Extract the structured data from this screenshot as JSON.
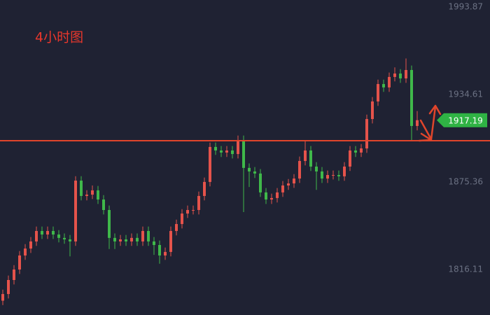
{
  "chart_data": {
    "type": "candlestick",
    "title": "4小时图",
    "ylim": [
      1785.3,
      1998.6
    ],
    "yticks": [
      1816.11,
      1875.36,
      1934.61,
      1993.87
    ],
    "up_color": "#e5534b",
    "down_color": "#3fb84a",
    "hline": 1903.3,
    "hline_color": "#e0452b",
    "last_price": 1917.19,
    "last_price_color": "#2fb344",
    "open": [
      1795.0,
      1799.5,
      1809.0,
      1816.1,
      1825.6,
      1830.3,
      1835.1,
      1842.2,
      1839.8,
      1842.2,
      1839.8,
      1837.5,
      1836.5,
      1835.1,
      1876.3,
      1865.9,
      1866.8,
      1869.7,
      1863.5,
      1856.4,
      1837.5,
      1835.1,
      1836.5,
      1835.1,
      1837.5,
      1835.1,
      1842.2,
      1835.1,
      1832.7,
      1825.6,
      1828.0,
      1842.2,
      1846.9,
      1854.0,
      1856.4,
      1856.4,
      1865.9,
      1875.4,
      1899.1,
      1896.7,
      1895.3,
      1896.7,
      1894.3,
      1903.8,
      1884.9,
      1882.5,
      1881.1,
      1868.3,
      1863.5,
      1864.5,
      1868.3,
      1873.0,
      1874.4,
      1877.7,
      1889.6,
      1896.7,
      1885.8,
      1882.5,
      1877.7,
      1880.1,
      1880.1,
      1879.2,
      1885.8,
      1896.7,
      1895.3,
      1898.1,
      1918.0,
      1929.9,
      1941.7,
      1939.4,
      1946.5,
      1948.8,
      1945.5,
      1951.2,
      1913.3
    ],
    "high": [
      1802.5,
      1812.0,
      1819.1,
      1828.6,
      1833.3,
      1838.1,
      1845.2,
      1845.2,
      1845.2,
      1845.2,
      1842.8,
      1840.5,
      1839.5,
      1879.3,
      1879.3,
      1869.8,
      1873.0,
      1872.7,
      1866.5,
      1859.4,
      1840.5,
      1839.5,
      1839.5,
      1840.5,
      1840.5,
      1845.2,
      1845.2,
      1838.1,
      1835.7,
      1831.0,
      1845.2,
      1849.9,
      1857.0,
      1859.4,
      1859.4,
      1868.9,
      1878.4,
      1902.1,
      1902.1,
      1899.7,
      1899.7,
      1899.7,
      1906.8,
      1906.8,
      1887.9,
      1885.5,
      1884.1,
      1871.3,
      1867.5,
      1871.3,
      1876.0,
      1877.4,
      1880.7,
      1892.6,
      1903.0,
      1899.7,
      1888.8,
      1885.5,
      1883.1,
      1883.1,
      1883.1,
      1888.8,
      1899.7,
      1899.7,
      1901.1,
      1921.0,
      1932.9,
      1944.7,
      1944.7,
      1949.5,
      1953.0,
      1951.8,
      1959.0,
      1954.2,
      1923.4
    ],
    "low": [
      1792.0,
      1796.5,
      1806.0,
      1813.1,
      1822.6,
      1827.3,
      1832.1,
      1836.8,
      1836.8,
      1836.8,
      1834.5,
      1833.5,
      1825.0,
      1832.1,
      1862.9,
      1862.9,
      1863.8,
      1860.5,
      1853.4,
      1830.0,
      1830.0,
      1832.1,
      1832.1,
      1832.1,
      1832.1,
      1832.1,
      1832.1,
      1826.0,
      1820.0,
      1822.6,
      1825.0,
      1839.2,
      1843.9,
      1851.0,
      1853.4,
      1853.4,
      1862.9,
      1872.4,
      1893.7,
      1892.3,
      1892.3,
      1891.3,
      1891.3,
      1855.0,
      1872.0,
      1878.1,
      1865.3,
      1860.5,
      1860.5,
      1861.5,
      1865.3,
      1870.0,
      1871.4,
      1874.7,
      1886.6,
      1882.8,
      1870.0,
      1874.7,
      1874.7,
      1877.1,
      1876.2,
      1876.2,
      1882.8,
      1892.3,
      1892.3,
      1895.1,
      1915.0,
      1926.9,
      1936.4,
      1936.4,
      1943.5,
      1942.5,
      1942.5,
      1903.0,
      1910.3
    ],
    "close": [
      1799.5,
      1809.0,
      1816.1,
      1825.6,
      1830.3,
      1835.1,
      1842.2,
      1839.8,
      1842.2,
      1839.8,
      1837.5,
      1836.5,
      1835.1,
      1876.3,
      1865.9,
      1866.8,
      1869.7,
      1863.5,
      1856.4,
      1837.5,
      1835.1,
      1836.5,
      1835.1,
      1837.5,
      1835.1,
      1842.2,
      1835.1,
      1832.7,
      1825.6,
      1828.0,
      1842.2,
      1846.9,
      1854.0,
      1856.4,
      1856.4,
      1865.9,
      1875.4,
      1899.1,
      1896.7,
      1895.3,
      1896.7,
      1894.3,
      1903.8,
      1884.9,
      1882.5,
      1881.1,
      1868.3,
      1863.5,
      1864.5,
      1868.3,
      1873.0,
      1874.4,
      1877.7,
      1889.6,
      1896.7,
      1885.8,
      1882.5,
      1877.7,
      1880.1,
      1880.1,
      1879.2,
      1885.8,
      1896.7,
      1895.3,
      1898.1,
      1918.0,
      1929.9,
      1941.7,
      1939.4,
      1946.5,
      1948.8,
      1945.5,
      1951.2,
      1913.3,
      1917.2
    ]
  }
}
